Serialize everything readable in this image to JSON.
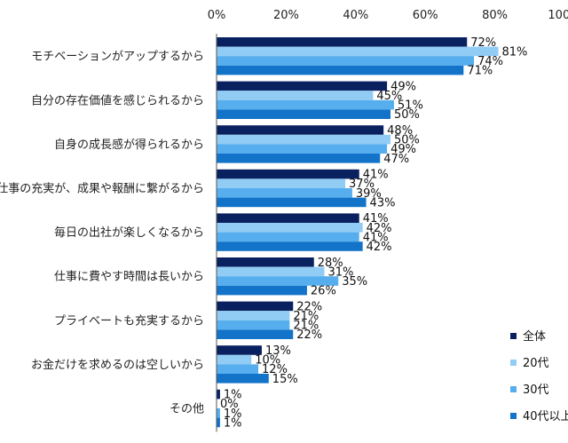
{
  "chart_data": {
    "type": "bar",
    "orientation": "horizontal",
    "categories": [
      "モチベーションがアップするから",
      "自分の存在価値を感じられるから",
      "自身の成長感が得られるから",
      "仕事の充実が、成果や報酬に繋がるから",
      "毎日の出社が楽しくなるから",
      "仕事に費やす時間は長いから",
      "プライベートも充実するから",
      "お金だけを求めるのは空しいから",
      "その他"
    ],
    "series": [
      {
        "name": "全体",
        "color": "#0a2160",
        "values": [
          72,
          49,
          48,
          41,
          41,
          28,
          22,
          13,
          1
        ]
      },
      {
        "name": "20代",
        "color": "#91ccf5",
        "values": [
          81,
          45,
          50,
          37,
          42,
          31,
          21,
          10,
          0
        ]
      },
      {
        "name": "30代",
        "color": "#56aeee",
        "values": [
          74,
          51,
          49,
          39,
          41,
          35,
          21,
          12,
          1
        ]
      },
      {
        "name": "40代以上",
        "color": "#1373c8",
        "values": [
          71,
          50,
          47,
          43,
          42,
          26,
          22,
          15,
          1
        ]
      }
    ],
    "xlim": [
      0,
      100
    ],
    "xticks": [
      "0%",
      "20%",
      "40%",
      "60%",
      "80%",
      "100%"
    ],
    "value_suffix": "%",
    "legend_position": "bottom-right",
    "grid": false
  }
}
